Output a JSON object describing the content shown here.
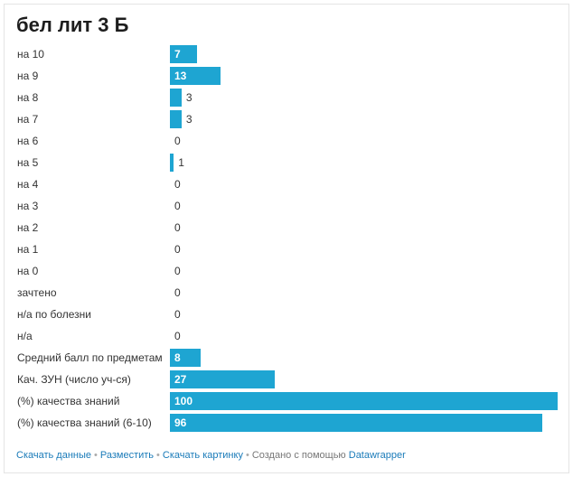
{
  "chart_data": {
    "type": "bar",
    "orientation": "horizontal",
    "title": "бел лит 3 Б",
    "categories": [
      "на 10",
      "на 9",
      "на 8",
      "на 7",
      "на 6",
      "на 5",
      "на 4",
      "на 3",
      "на 2",
      "на 1",
      "на 0",
      "зачтено",
      "н/а по болезни",
      "н/а",
      "Средний балл по предметам",
      "Кач. ЗУН (число уч-ся)",
      "(%) качества знаний",
      "(%) качества знаний (6-10)"
    ],
    "values": [
      7,
      13,
      3,
      3,
      0,
      1,
      0,
      0,
      0,
      0,
      0,
      0,
      0,
      0,
      8,
      27,
      100,
      96
    ],
    "xlim": [
      0,
      100
    ],
    "bar_color": "#1ea5d2"
  },
  "footer": {
    "download_data": "Скачать данные",
    "embed": "Разместить",
    "download_image": "Скачать картинку",
    "created_with": "Создано с помощью",
    "brand": "Datawrapper",
    "separator": "•"
  }
}
